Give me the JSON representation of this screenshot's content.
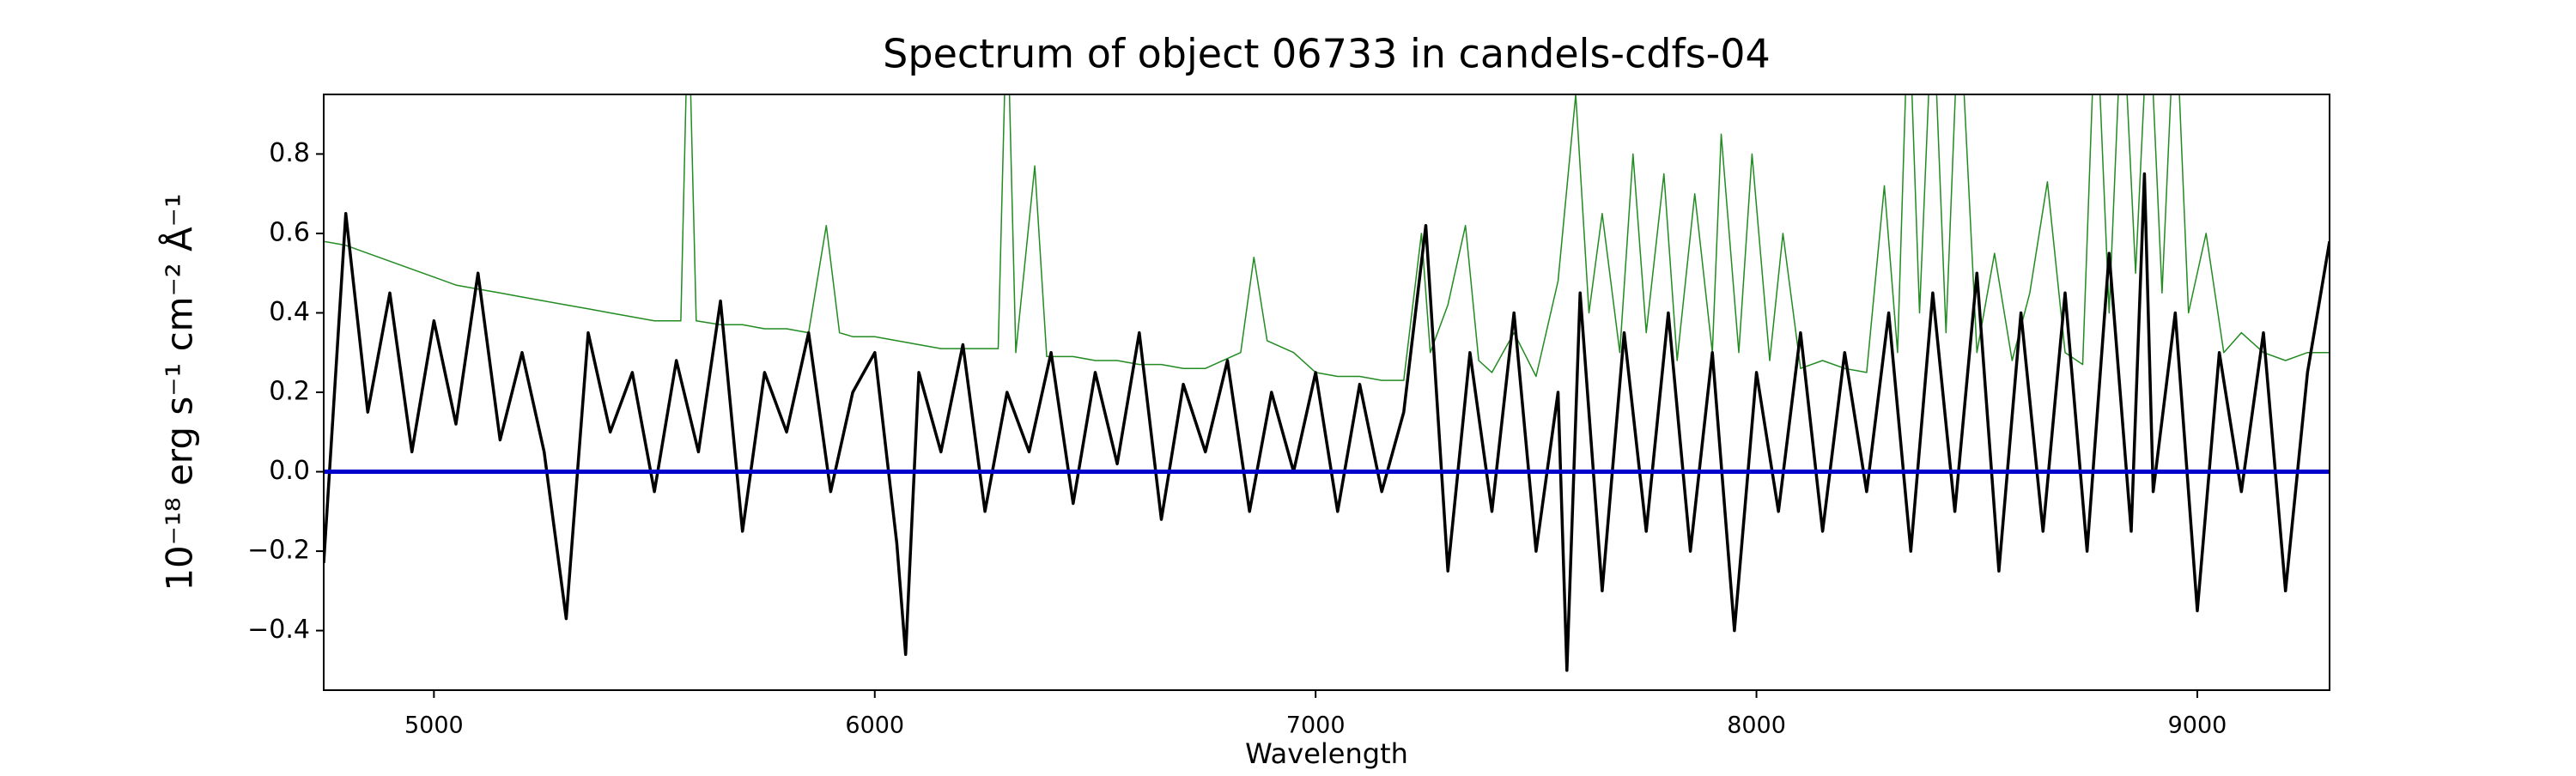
{
  "chart_data": {
    "type": "line",
    "title": "Spectrum of object 06733 in candels-cdfs-04",
    "xlabel": "Wavelength",
    "ylabel": "10⁻¹⁸ erg s⁻¹ cm⁻² Å⁻¹",
    "xlim": [
      4750,
      9300
    ],
    "ylim": [
      -0.55,
      0.95
    ],
    "xticks": [
      5000,
      6000,
      7000,
      8000,
      9000
    ],
    "yticks": [
      {
        "value": -0.4,
        "label": "−0.4"
      },
      {
        "value": -0.2,
        "label": "−0.2"
      },
      {
        "value": 0,
        "label": "0.0"
      },
      0.2,
      0.4,
      0.6,
      0.8
    ],
    "grid": false,
    "series": [
      {
        "color": "#228b22",
        "width": 1.5,
        "x": [
          4750,
          4800,
          4850,
          4900,
          4950,
          5000,
          5050,
          5100,
          5150,
          5200,
          5250,
          5300,
          5350,
          5400,
          5450,
          5500,
          5560,
          5577,
          5595,
          5650,
          5700,
          5750,
          5800,
          5850,
          5890,
          5920,
          5950,
          6000,
          6050,
          6100,
          6150,
          6200,
          6280,
          6300,
          6320,
          6363,
          6390,
          6450,
          6500,
          6550,
          6600,
          6650,
          6700,
          6750,
          6830,
          6860,
          6890,
          6950,
          7000,
          7050,
          7100,
          7150,
          7200,
          7240,
          7260,
          7300,
          7340,
          7370,
          7400,
          7450,
          7500,
          7550,
          7590,
          7620,
          7650,
          7690,
          7720,
          7750,
          7790,
          7820,
          7860,
          7900,
          7920,
          7960,
          7990,
          8030,
          8060,
          8100,
          8150,
          8200,
          8250,
          8290,
          8320,
          8345,
          8370,
          8400,
          8430,
          8460,
          8500,
          8540,
          8580,
          8620,
          8660,
          8700,
          8740,
          8770,
          8800,
          8830,
          8860,
          8890,
          8920,
          8950,
          8980,
          9020,
          9060,
          9100,
          9150,
          9200,
          9250,
          9300
        ],
        "values": [
          0.58,
          0.57,
          0.55,
          0.53,
          0.51,
          0.49,
          0.47,
          0.46,
          0.45,
          0.44,
          0.43,
          0.42,
          0.41,
          0.4,
          0.39,
          0.38,
          0.38,
          1.2,
          0.38,
          0.37,
          0.37,
          0.36,
          0.36,
          0.35,
          0.62,
          0.35,
          0.34,
          0.34,
          0.33,
          0.32,
          0.31,
          0.31,
          0.31,
          1.2,
          0.3,
          0.77,
          0.29,
          0.29,
          0.28,
          0.28,
          0.27,
          0.27,
          0.26,
          0.26,
          0.3,
          0.54,
          0.33,
          0.3,
          0.25,
          0.24,
          0.24,
          0.23,
          0.23,
          0.6,
          0.3,
          0.42,
          0.62,
          0.28,
          0.25,
          0.35,
          0.24,
          0.48,
          0.95,
          0.4,
          0.65,
          0.3,
          0.8,
          0.35,
          0.75,
          0.28,
          0.7,
          0.3,
          0.85,
          0.3,
          0.8,
          0.28,
          0.6,
          0.26,
          0.28,
          0.26,
          0.25,
          0.72,
          0.3,
          1.2,
          0.4,
          1.2,
          0.35,
          1.2,
          0.3,
          0.55,
          0.28,
          0.45,
          0.73,
          0.3,
          0.27,
          1.2,
          0.4,
          1.2,
          0.5,
          1.2,
          0.45,
          1.2,
          0.4,
          0.6,
          0.3,
          0.35,
          0.3,
          0.28,
          0.3,
          0.3
        ]
      },
      {
        "color": "#000000",
        "width": 3.5,
        "x": [
          4750,
          4800,
          4850,
          4900,
          4950,
          5000,
          5050,
          5100,
          5150,
          5200,
          5250,
          5300,
          5350,
          5400,
          5450,
          5500,
          5550,
          5600,
          5650,
          5700,
          5750,
          5800,
          5850,
          5900,
          5950,
          6000,
          6050,
          6070,
          6100,
          6150,
          6200,
          6250,
          6300,
          6350,
          6400,
          6450,
          6500,
          6550,
          6600,
          6650,
          6700,
          6750,
          6800,
          6850,
          6900,
          6950,
          7000,
          7050,
          7100,
          7150,
          7200,
          7250,
          7300,
          7350,
          7400,
          7450,
          7500,
          7550,
          7570,
          7600,
          7650,
          7700,
          7750,
          7800,
          7850,
          7900,
          7950,
          8000,
          8050,
          8100,
          8150,
          8200,
          8250,
          8300,
          8350,
          8400,
          8450,
          8500,
          8550,
          8600,
          8650,
          8700,
          8750,
          8800,
          8850,
          8880,
          8900,
          8950,
          9000,
          9050,
          9100,
          9150,
          9200,
          9250,
          9300
        ],
        "values": [
          -0.23,
          0.65,
          0.15,
          0.45,
          0.05,
          0.38,
          0.12,
          0.5,
          0.08,
          0.3,
          0.05,
          -0.37,
          0.35,
          0.1,
          0.25,
          -0.05,
          0.28,
          0.05,
          0.43,
          -0.15,
          0.25,
          0.1,
          0.35,
          -0.05,
          0.2,
          0.3,
          -0.18,
          -0.46,
          0.25,
          0.05,
          0.32,
          -0.1,
          0.2,
          0.05,
          0.3,
          -0.08,
          0.25,
          0.02,
          0.35,
          -0.12,
          0.22,
          0.05,
          0.28,
          -0.1,
          0.2,
          0.0,
          0.25,
          -0.1,
          0.22,
          -0.05,
          0.15,
          0.62,
          -0.25,
          0.3,
          -0.1,
          0.4,
          -0.2,
          0.2,
          -0.5,
          0.45,
          -0.3,
          0.35,
          -0.15,
          0.4,
          -0.2,
          0.3,
          -0.4,
          0.25,
          -0.1,
          0.35,
          -0.15,
          0.3,
          -0.05,
          0.4,
          -0.2,
          0.45,
          -0.1,
          0.5,
          -0.25,
          0.4,
          -0.15,
          0.45,
          -0.2,
          0.55,
          -0.15,
          0.75,
          -0.05,
          0.4,
          -0.35,
          0.3,
          -0.05,
          0.35,
          -0.3,
          0.25,
          0.58
        ]
      },
      {
        "color": "#0000cc",
        "width": 5,
        "x": [
          4750,
          9300
        ],
        "values": [
          0,
          0
        ]
      }
    ]
  }
}
